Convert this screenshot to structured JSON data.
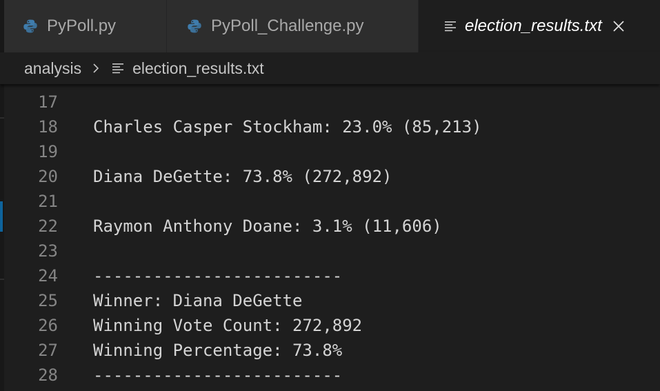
{
  "tabs": [
    {
      "label": "PyPoll.py",
      "icon": "python-icon",
      "active": false
    },
    {
      "label": "PyPoll_Challenge.py",
      "icon": "python-icon",
      "active": false
    },
    {
      "label": "election_results.txt",
      "icon": "text-file-icon",
      "active": true
    }
  ],
  "breadcrumb": {
    "folder": "analysis",
    "file": "election_results.txt"
  },
  "editor": {
    "lines": [
      {
        "number": "17",
        "text": ""
      },
      {
        "number": "18",
        "text": "Charles Casper Stockham: 23.0% (85,213)"
      },
      {
        "number": "19",
        "text": ""
      },
      {
        "number": "20",
        "text": "Diana DeGette: 73.8% (272,892)"
      },
      {
        "number": "21",
        "text": ""
      },
      {
        "number": "22",
        "text": "Raymon Anthony Doane: 3.1% (11,606)"
      },
      {
        "number": "23",
        "text": ""
      },
      {
        "number": "24",
        "text": "-------------------------"
      },
      {
        "number": "25",
        "text": "Winner: Diana DeGette"
      },
      {
        "number": "26",
        "text": "Winning Vote Count: 272,892"
      },
      {
        "number": "27",
        "text": "Winning Percentage: 73.8%"
      },
      {
        "number": "28",
        "text": "-------------------------"
      }
    ]
  },
  "colors": {
    "python_blue": "#3f7cac",
    "python_yellow": "#f4c430",
    "editor_bg": "#1e1e1e",
    "tab_inactive_bg": "#2d2d2d"
  }
}
